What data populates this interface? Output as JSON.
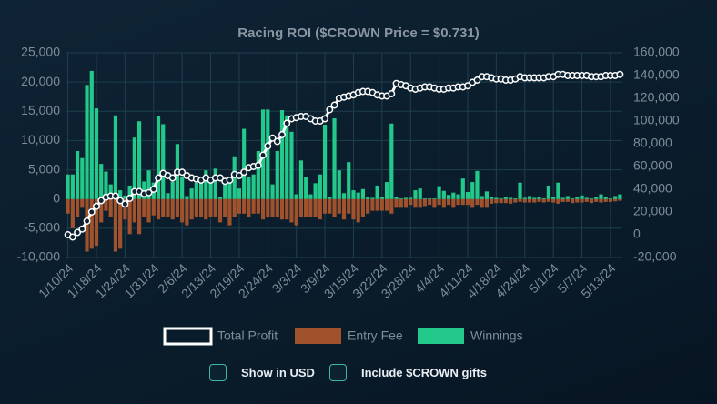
{
  "chart_data": {
    "type": "bar-line",
    "title": "Racing ROI ($CROWN Price = $0.731)",
    "categories": [
      "1/10/24",
      null,
      null,
      null,
      null,
      null,
      "1/18/24",
      null,
      null,
      null,
      null,
      null,
      "1/24/24",
      null,
      null,
      null,
      null,
      null,
      "1/31/24",
      null,
      null,
      null,
      null,
      null,
      "2/6/24",
      null,
      null,
      null,
      null,
      null,
      "2/13/24",
      null,
      null,
      null,
      null,
      null,
      "2/19/24",
      null,
      null,
      null,
      null,
      null,
      "2/24/24",
      null,
      null,
      null,
      null,
      null,
      "3/3/24",
      null,
      null,
      null,
      null,
      null,
      "3/9/24",
      null,
      null,
      null,
      null,
      null,
      "3/15/24",
      null,
      null,
      null,
      null,
      null,
      "3/22/24",
      null,
      null,
      null,
      null,
      null,
      "3/28/24",
      null,
      null,
      null,
      null,
      null,
      "4/4/24",
      null,
      null,
      null,
      null,
      null,
      "4/11/24",
      null,
      null,
      null,
      null,
      null,
      "4/18/24",
      null,
      null,
      null,
      null,
      null,
      "4/24/24",
      null,
      null,
      null,
      null,
      null,
      "5/1/24",
      null,
      null,
      null,
      null,
      null,
      "5/7/24",
      null,
      null,
      null,
      null,
      null,
      "5/13/24",
      null,
      null
    ],
    "series": [
      {
        "name": "Total Profit",
        "color": "#ffffff",
        "axis": "y2",
        "values": [
          0,
          -2000,
          2000,
          5000,
          12000,
          20000,
          25000,
          30000,
          33000,
          34000,
          34000,
          30000,
          27000,
          32000,
          38000,
          38000,
          36000,
          37000,
          40000,
          50000,
          54000,
          52000,
          50000,
          55000,
          55000,
          52000,
          50000,
          49000,
          48000,
          50000,
          48000,
          50000,
          50000,
          47000,
          48000,
          53000,
          52000,
          55000,
          59000,
          60000,
          61000,
          70000,
          78000,
          85000,
          82000,
          88000,
          98000,
          102000,
          103000,
          104000,
          104000,
          102000,
          100000,
          100000,
          102000,
          110000,
          114000,
          120000,
          121000,
          122000,
          123000,
          125000,
          126000,
          126000,
          125000,
          123000,
          122000,
          122000,
          124000,
          133000,
          132000,
          131000,
          129000,
          128000,
          129000,
          130000,
          130000,
          129000,
          128000,
          128000,
          129000,
          129000,
          130000,
          130000,
          131000,
          134000,
          136000,
          139000,
          139000,
          138000,
          137000,
          137000,
          136000,
          136000,
          137000,
          139000,
          138000,
          138000,
          138000,
          138000,
          138000,
          139000,
          139000,
          141000,
          141000,
          140000,
          140000,
          140000,
          140000,
          140000,
          139000,
          139000,
          139000,
          140000,
          140000,
          140000,
          141000
        ]
      },
      {
        "name": "Entry Fee",
        "color": "#a0522d",
        "values": [
          -2500,
          -5000,
          -3000,
          -1500,
          -9000,
          -8500,
          -8000,
          -4000,
          -2000,
          -3000,
          -9000,
          -8500,
          -3500,
          -6000,
          -4000,
          -6000,
          -3000,
          -4000,
          -2800,
          -3500,
          -3000,
          -3000,
          -3500,
          -3000,
          -4000,
          -4500,
          -3500,
          -3000,
          -3000,
          -3500,
          -3000,
          -3000,
          -4000,
          -3000,
          -4500,
          -3000,
          -2500,
          -2500,
          -3000,
          -2500,
          -2500,
          -3500,
          -3000,
          -3000,
          -3000,
          -3500,
          -3500,
          -4000,
          -4500,
          -3000,
          -3000,
          -3000,
          -3000,
          -3500,
          -2500,
          -2500,
          -3000,
          -2500,
          -3500,
          -2500,
          -3500,
          -4000,
          -3000,
          -2500,
          -2000,
          -2000,
          -2000,
          -2000,
          -2500,
          -1500,
          -1500,
          -1500,
          -1000,
          -1500,
          -1500,
          -1200,
          -1000,
          -1500,
          -1000,
          -1500,
          -1000,
          -1500,
          -1000,
          -1000,
          -1000,
          -1500,
          -1000,
          -1500,
          -1500,
          -800,
          -700,
          -700,
          -700,
          -800,
          -600,
          -500,
          -600,
          -600,
          -600,
          -500,
          -600,
          -500,
          -600,
          -800,
          -500,
          -500,
          -700,
          -600,
          -600,
          -500,
          -700,
          -500,
          -600,
          -500,
          -500,
          -400,
          -300
        ]
      },
      {
        "name": "Winnings",
        "color": "#22c98a",
        "values": [
          4200,
          4200,
          8200,
          7000,
          19500,
          21900,
          15500,
          6000,
          4700,
          2500,
          14300,
          1500,
          600,
          2300,
          10500,
          13300,
          3000,
          4900,
          2800,
          14200,
          12800,
          1000,
          3000,
          9400,
          3800,
          500,
          1800,
          2800,
          3300,
          4900,
          3700,
          5200,
          400,
          2500,
          3000,
          7300,
          1800,
          12000,
          3800,
          4200,
          8200,
          15300,
          15300,
          2500,
          8200,
          15200,
          14300,
          11500,
          800,
          6600,
          3700,
          800,
          2700,
          4200,
          12700,
          400,
          13800,
          4900,
          1000,
          6300,
          1500,
          1100,
          1700,
          300,
          200,
          2300,
          300,
          2900,
          12900,
          300,
          100,
          200,
          200,
          1500,
          1800,
          100,
          100,
          100,
          2200,
          1400,
          700,
          1100,
          800,
          3500,
          1200,
          2900,
          4800,
          500,
          1300,
          300,
          200,
          100,
          300,
          200,
          100,
          2800,
          200,
          500,
          200,
          300,
          100,
          2300,
          300,
          2800,
          200,
          500,
          100,
          300,
          600,
          200,
          100,
          400,
          800,
          300,
          100,
          500,
          800
        ]
      }
    ],
    "ylim": [
      -10000,
      25000
    ],
    "yticks": [
      {
        "value": -10000,
        "label": "-10,000"
      },
      {
        "value": -5000,
        "label": "-5,000"
      },
      0,
      {
        "value": 5000,
        "label": "5,000"
      },
      {
        "value": 10000,
        "label": "10,000"
      },
      {
        "value": 15000,
        "label": "15,000"
      },
      {
        "value": 20000,
        "label": "20,000"
      },
      {
        "value": 25000,
        "label": "25,000"
      }
    ],
    "y2lim": [
      -20000,
      160000
    ],
    "y2ticks": [
      {
        "value": -20000,
        "label": "-20,000"
      },
      0,
      {
        "value": 20000,
        "label": "20,000"
      },
      {
        "value": 40000,
        "label": "40,000"
      },
      {
        "value": 60000,
        "label": "60,000"
      },
      {
        "value": 80000,
        "label": "80,000"
      },
      {
        "value": 100000,
        "label": "100,000"
      },
      {
        "value": 120000,
        "label": "120,000"
      },
      {
        "value": 140000,
        "label": "140,000"
      },
      {
        "value": 160000,
        "label": "160,000"
      }
    ],
    "grid": true
  },
  "controls": [
    "Show in USD",
    "Include $CROWN gifts"
  ]
}
